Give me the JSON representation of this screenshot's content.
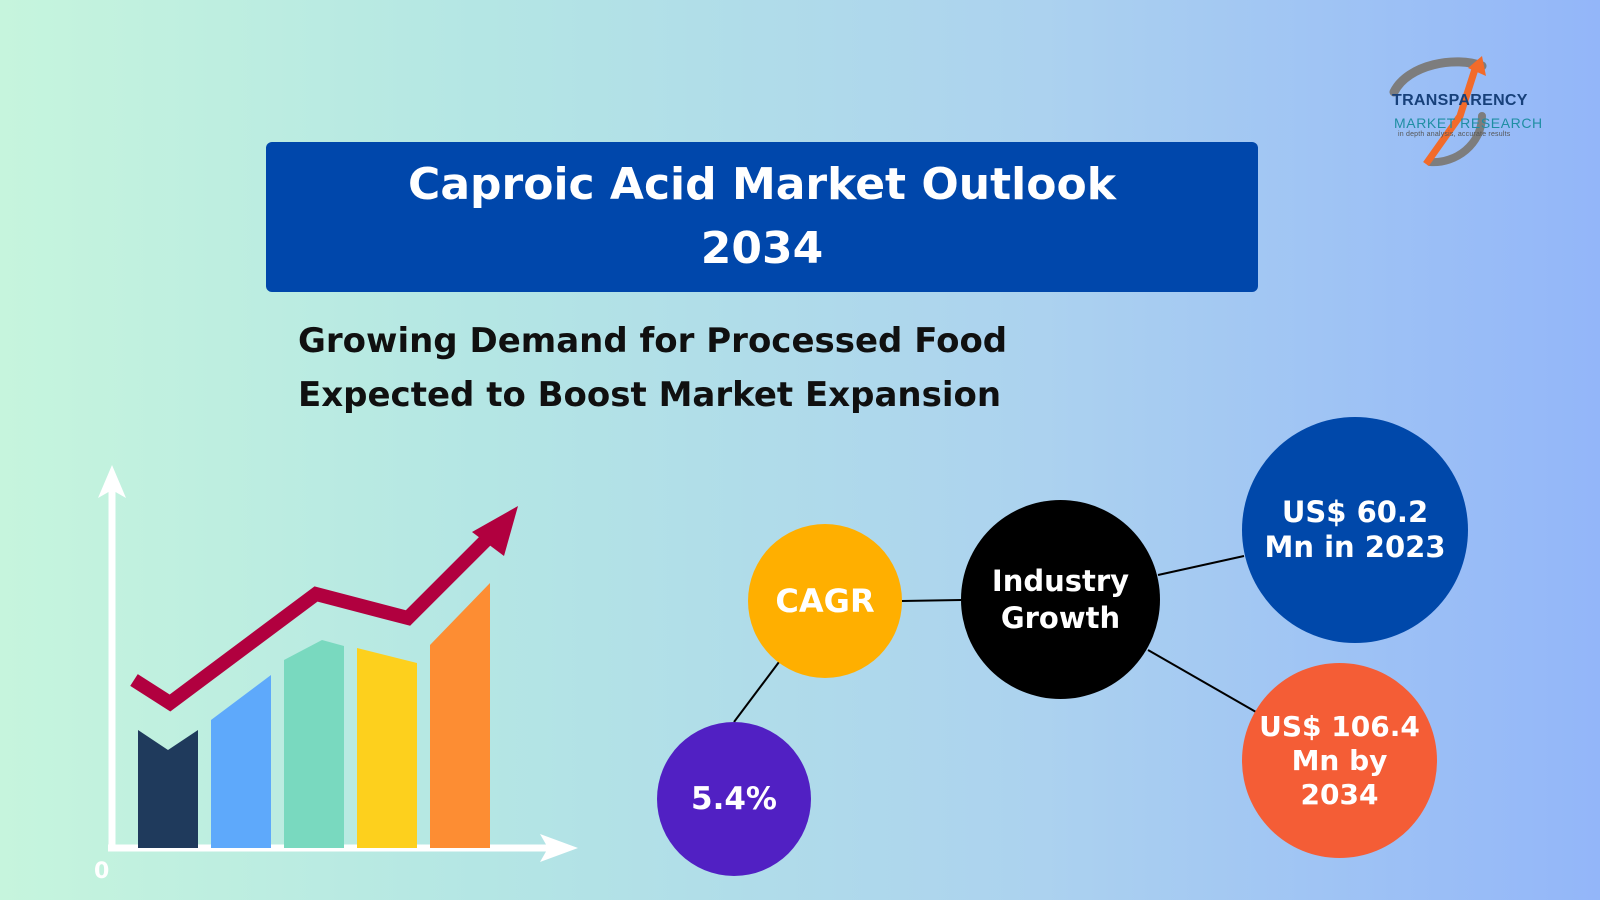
{
  "title": {
    "line1": "Caproic Acid Market Outlook",
    "line2": "2034"
  },
  "subtitle": {
    "line1": "Growing Demand for Processed Food",
    "line2": "Expected to Boost Market Expansion"
  },
  "logo": {
    "name": "TRANSPARENCY",
    "subname": "MARKET RESEARCH",
    "tagline": "in depth analysis, accurate results"
  },
  "infographic": {
    "cagr_label": "CAGR",
    "cagr_value": "5.4%",
    "center_line1": "Industry",
    "center_line2": "Growth",
    "value_2023_line1": "US$ 60.2",
    "value_2023_line2": "Mn in 2023",
    "value_2034_line1": "US$ 106.4",
    "value_2034_line2": "Mn by",
    "value_2034_line3": "2034"
  },
  "illustration": {
    "origin_label": "0",
    "bar_colors": [
      "#1f3a5c",
      "#5ea9fb",
      "#79d9bf",
      "#fdd01d",
      "#fd8d33"
    ],
    "arrow_color": "#b1003f"
  }
}
